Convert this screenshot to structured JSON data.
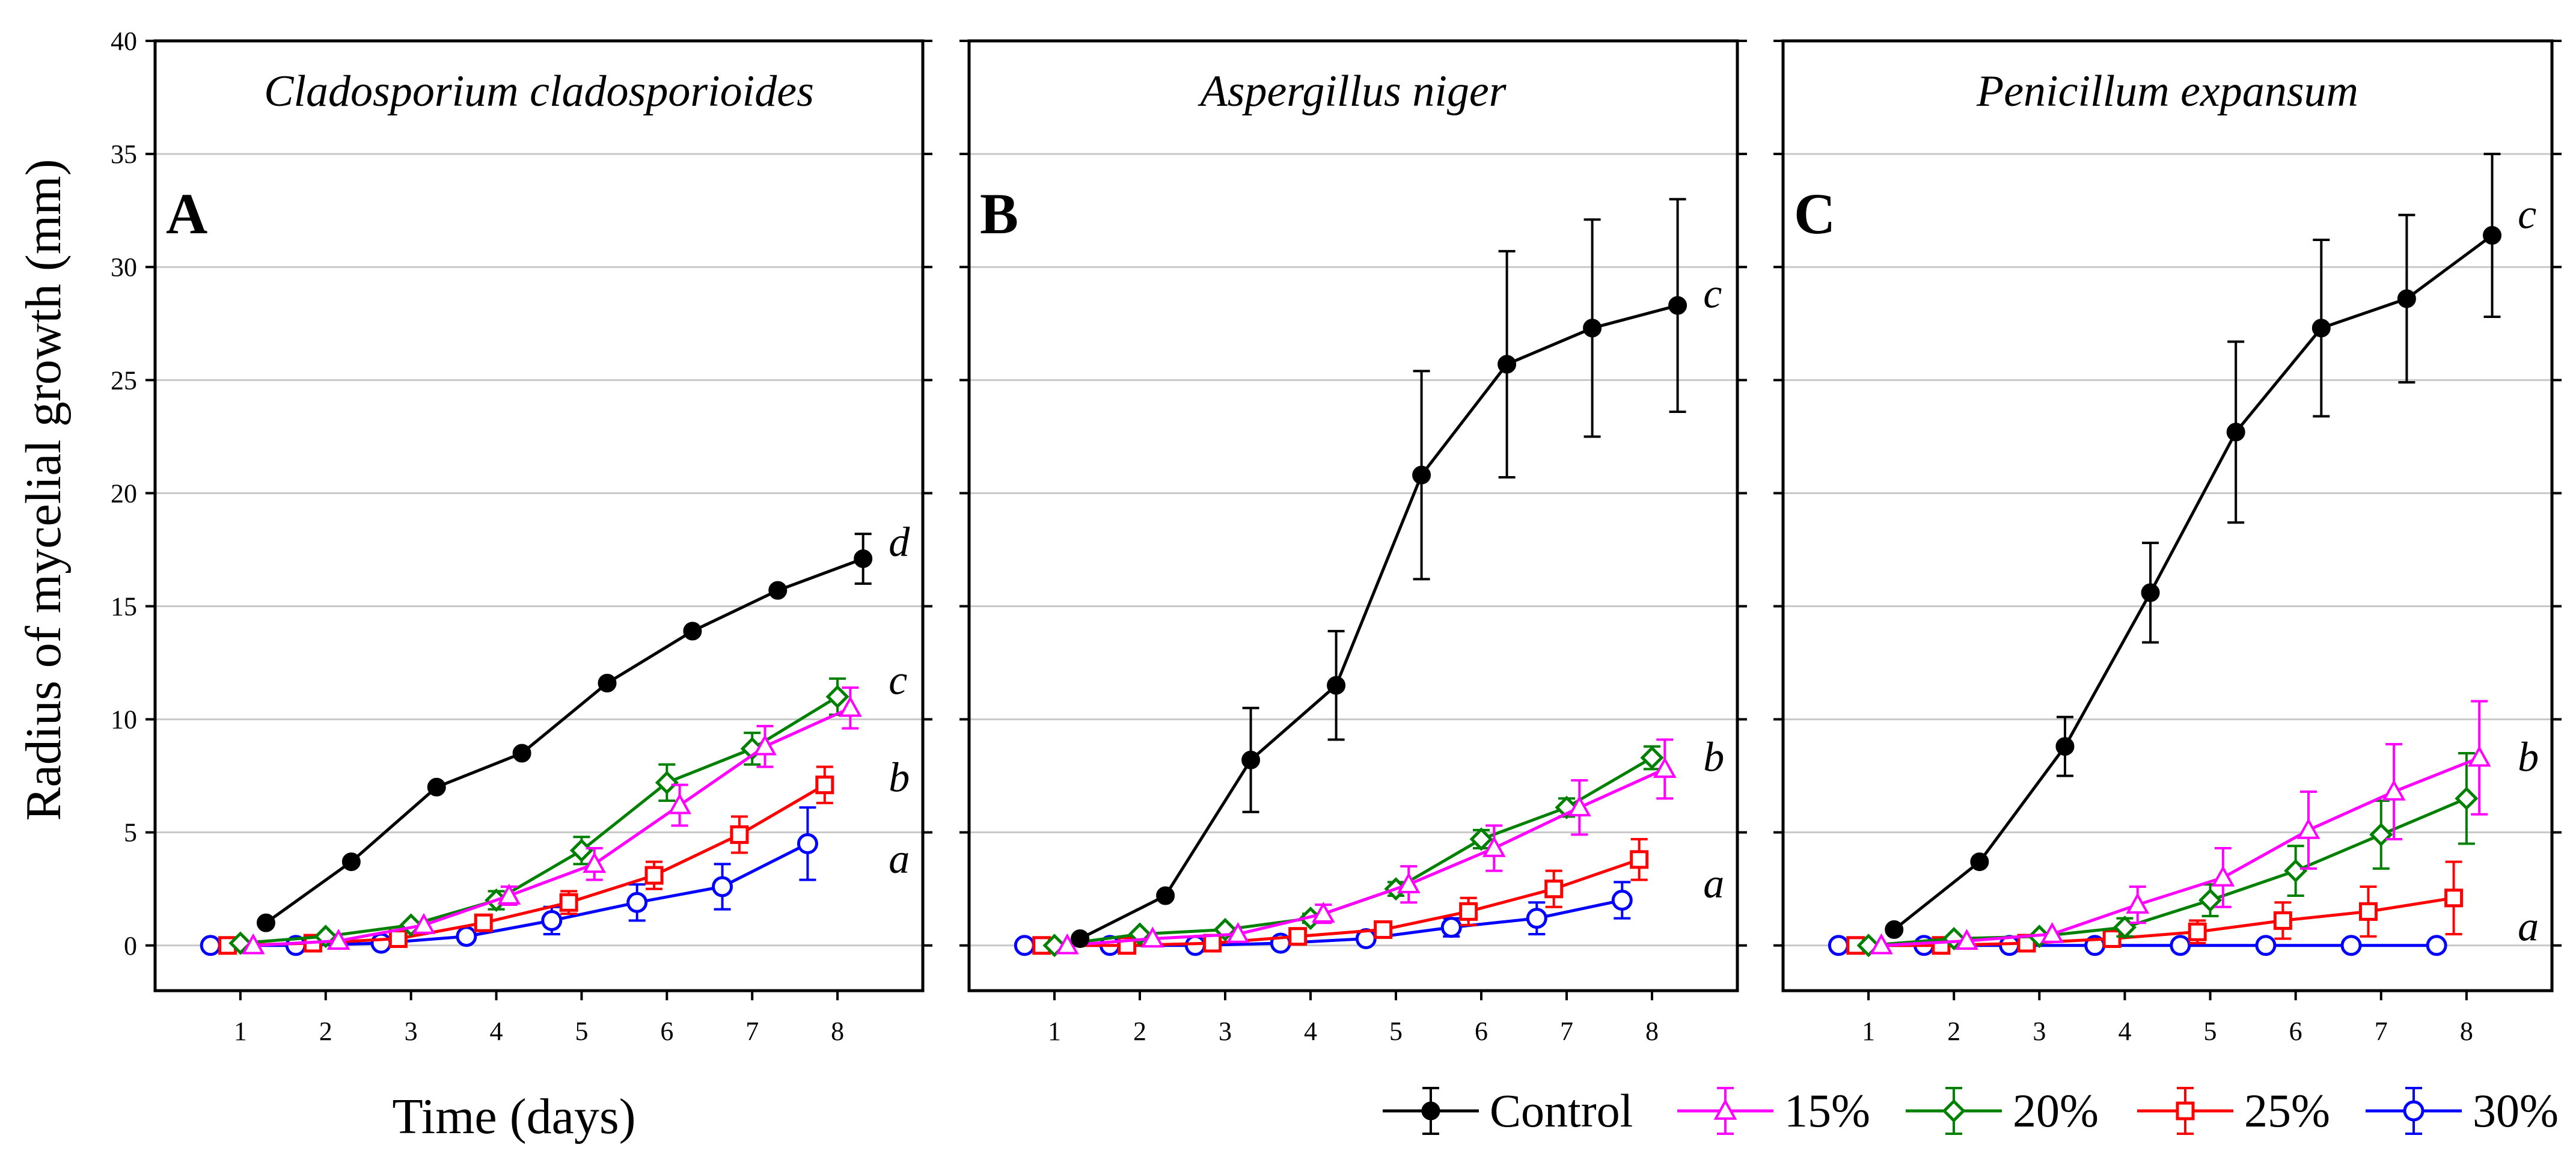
{
  "chart_data": {
    "type": "line",
    "ylabel": "Radius of mycelial growth (mm)",
    "xlabel": "Time (days)",
    "xlim": [
      0,
      9
    ],
    "ylim": [
      -2,
      40
    ],
    "x_ticks": [
      1,
      2,
      3,
      4,
      5,
      6,
      7,
      8
    ],
    "y_ticks": [
      0,
      5,
      10,
      15,
      20,
      25,
      30,
      35,
      40
    ],
    "grid": true,
    "legend_position": "bottom-right",
    "legend": [
      {
        "name": "Control",
        "color": "#000000",
        "marker": "filled-circle"
      },
      {
        "name": "15%",
        "color": "#ff00ff",
        "marker": "triangle"
      },
      {
        "name": "20%",
        "color": "#008000",
        "marker": "diamond"
      },
      {
        "name": "25%",
        "color": "#ff0000",
        "marker": "square"
      },
      {
        "name": "30%",
        "color": "#0000ff",
        "marker": "circle"
      }
    ],
    "panels": [
      {
        "letter": "A",
        "title": "Cladosporium cladosporioides",
        "group_labels": [
          {
            "text": "d",
            "x": 8.6,
            "y": 17.8
          },
          {
            "text": "c",
            "x": 8.6,
            "y": 11.7
          },
          {
            "text": "b",
            "x": 8.6,
            "y": 7.4
          },
          {
            "text": "a",
            "x": 8.6,
            "y": 3.8
          }
        ],
        "series": [
          {
            "name": "Control",
            "x": [
              1.3,
              2.3,
              3.3,
              4.3,
              5.3,
              6.3,
              7.3,
              8.3
            ],
            "y": [
              1.0,
              3.7,
              7.0,
              8.5,
              11.6,
              13.9,
              15.7,
              17.1
            ],
            "err": [
              0,
              0,
              0,
              0,
              0,
              0,
              0,
              1.1
            ]
          },
          {
            "name": "15%",
            "x": [
              1.15,
              2.15,
              3.15,
              4.15,
              5.15,
              6.15,
              7.15,
              8.15
            ],
            "y": [
              0,
              0.2,
              0.9,
              2.2,
              3.6,
              6.2,
              8.8,
              10.5
            ],
            "err": [
              0,
              0,
              0,
              0.4,
              0.7,
              0.9,
              0.9,
              0.9
            ]
          },
          {
            "name": "20%",
            "x": [
              1.0,
              2.0,
              3.0,
              4.0,
              5.0,
              6.0,
              7.0,
              8.0
            ],
            "y": [
              0.1,
              0.4,
              0.9,
              2.0,
              4.2,
              7.2,
              8.7,
              11.0
            ],
            "err": [
              0,
              0,
              0,
              0.4,
              0.6,
              0.8,
              0.7,
              0.8
            ]
          },
          {
            "name": "25%",
            "x": [
              0.85,
              1.85,
              2.85,
              3.85,
              4.85,
              5.85,
              6.85,
              7.85
            ],
            "y": [
              0,
              0.1,
              0.3,
              1.0,
              1.9,
              3.1,
              4.9,
              7.1
            ],
            "err": [
              0,
              0,
              0,
              0.3,
              0.5,
              0.6,
              0.8,
              0.8
            ]
          },
          {
            "name": "30%",
            "x": [
              0.65,
              1.65,
              2.65,
              3.65,
              4.65,
              5.65,
              6.65,
              7.65
            ],
            "y": [
              0,
              0,
              0.1,
              0.4,
              1.1,
              1.9,
              2.6,
              4.5
            ],
            "err": [
              0,
              0,
              0,
              0.2,
              0.6,
              0.8,
              1.0,
              1.6
            ]
          }
        ]
      },
      {
        "letter": "B",
        "title": "Aspergillus niger",
        "group_labels": [
          {
            "text": "c",
            "x": 8.6,
            "y": 28.8
          },
          {
            "text": "b",
            "x": 8.6,
            "y": 8.3
          },
          {
            "text": "a",
            "x": 8.6,
            "y": 2.7
          }
        ],
        "series": [
          {
            "name": "Control",
            "x": [
              1.3,
              2.3,
              3.3,
              4.3,
              5.3,
              6.3,
              7.3,
              8.3
            ],
            "y": [
              0.3,
              2.2,
              8.2,
              11.5,
              20.8,
              25.7,
              27.3,
              28.3
            ],
            "err": [
              0,
              0,
              2.3,
              2.4,
              4.6,
              5.0,
              4.8,
              4.7
            ]
          },
          {
            "name": "15%",
            "x": [
              1.15,
              2.15,
              3.15,
              4.15,
              5.15,
              6.15,
              7.15,
              8.15
            ],
            "y": [
              0,
              0.3,
              0.5,
              1.4,
              2.7,
              4.3,
              6.1,
              7.8
            ],
            "err": [
              0,
              0,
              0,
              0.4,
              0.8,
              1.0,
              1.2,
              1.3
            ]
          },
          {
            "name": "20%",
            "x": [
              1.0,
              2.0,
              3.0,
              4.0,
              5.0,
              6.0,
              7.0,
              8.0
            ],
            "y": [
              0,
              0.5,
              0.7,
              1.2,
              2.5,
              4.7,
              6.1,
              8.3
            ],
            "err": [
              0,
              0,
              0,
              0.2,
              0.3,
              0.4,
              0.4,
              0.5
            ]
          },
          {
            "name": "25%",
            "x": [
              0.85,
              1.85,
              2.85,
              3.85,
              4.85,
              5.85,
              6.85,
              7.85
            ],
            "y": [
              0,
              0,
              0.1,
              0.4,
              0.7,
              1.5,
              2.5,
              3.8
            ],
            "err": [
              0,
              0,
              0,
              0.2,
              0.3,
              0.6,
              0.8,
              0.9
            ]
          },
          {
            "name": "30%",
            "x": [
              0.65,
              1.65,
              2.65,
              3.65,
              4.65,
              5.65,
              6.65,
              7.65
            ],
            "y": [
              0,
              0,
              0,
              0.1,
              0.3,
              0.8,
              1.2,
              2.0
            ],
            "err": [
              0,
              0,
              0,
              0,
              0.2,
              0.4,
              0.7,
              0.8
            ]
          }
        ]
      },
      {
        "letter": "C",
        "title": "Penicillum expansum",
        "group_labels": [
          {
            "text": "c",
            "x": 8.6,
            "y": 32.3
          },
          {
            "text": "b",
            "x": 8.6,
            "y": 8.3
          },
          {
            "text": "a",
            "x": 8.6,
            "y": 0.8
          }
        ],
        "series": [
          {
            "name": "Control",
            "x": [
              1.3,
              2.3,
              3.3,
              4.3,
              5.3,
              6.3,
              7.3,
              8.3
            ],
            "y": [
              0.7,
              3.7,
              8.8,
              15.6,
              22.7,
              27.3,
              28.6,
              31.4
            ],
            "err": [
              0,
              0,
              1.3,
              2.2,
              4.0,
              3.9,
              3.7,
              3.6
            ]
          },
          {
            "name": "15%",
            "x": [
              1.15,
              2.15,
              3.15,
              4.15,
              5.15,
              6.15,
              7.15,
              8.15
            ],
            "y": [
              0,
              0.2,
              0.5,
              1.8,
              3.0,
              5.1,
              6.8,
              8.3
            ],
            "err": [
              0,
              0,
              0,
              0.8,
              1.3,
              1.7,
              2.1,
              2.5
            ]
          },
          {
            "name": "20%",
            "x": [
              1.0,
              2.0,
              3.0,
              4.0,
              5.0,
              6.0,
              7.0,
              8.0
            ],
            "y": [
              0,
              0.3,
              0.4,
              0.8,
              2.0,
              3.3,
              4.9,
              6.5
            ],
            "err": [
              0,
              0,
              0,
              0.4,
              0.7,
              1.1,
              1.5,
              2.0
            ]
          },
          {
            "name": "25%",
            "x": [
              0.85,
              1.85,
              2.85,
              3.85,
              4.85,
              5.85,
              6.85,
              7.85
            ],
            "y": [
              0,
              0,
              0.1,
              0.3,
              0.6,
              1.1,
              1.5,
              2.1
            ],
            "err": [
              0,
              0,
              0,
              0.3,
              0.5,
              0.8,
              1.1,
              1.6
            ]
          },
          {
            "name": "30%",
            "x": [
              0.65,
              1.65,
              2.65,
              3.65,
              4.65,
              5.65,
              6.65,
              7.65
            ],
            "y": [
              0,
              0,
              0,
              0,
              0,
              0,
              0,
              0
            ],
            "err": [
              0,
              0,
              0,
              0,
              0,
              0,
              0,
              0
            ]
          }
        ]
      }
    ]
  }
}
